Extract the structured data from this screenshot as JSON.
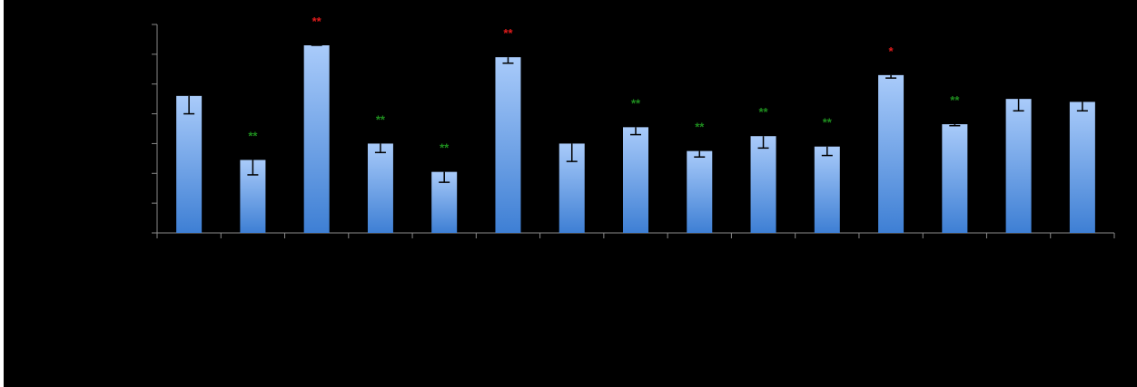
{
  "chart_data": {
    "type": "bar",
    "title": "",
    "xlabel": "",
    "ylabel": "",
    "ylim": [
      0,
      7
    ],
    "y_ticks": [
      0,
      1,
      2,
      3,
      4,
      5,
      6,
      7
    ],
    "grid": false,
    "legend": "none",
    "categories": [
      "",
      "",
      "",
      "",
      "",
      "",
      "",
      "",
      "",
      "",
      "",
      "",
      "",
      "",
      ""
    ],
    "values": [
      4.6,
      2.45,
      6.3,
      3.0,
      2.05,
      5.9,
      3.0,
      3.55,
      2.75,
      3.25,
      2.9,
      5.3,
      3.65,
      4.5,
      4.4
    ],
    "errors": [
      0.6,
      0.5,
      0.0,
      0.3,
      0.35,
      0.2,
      0.6,
      0.25,
      0.2,
      0.4,
      0.3,
      0.1,
      0.05,
      0.4,
      0.3
    ],
    "significance": [
      "",
      "**",
      "**",
      "**",
      "**",
      "**",
      "",
      "**",
      "**",
      "**",
      "**",
      "*",
      "**",
      "",
      ""
    ],
    "significance_colors": [
      "",
      "#1e8c1e",
      "#e11b1b",
      "#1e8c1e",
      "#1e8c1e",
      "#e11b1b",
      "",
      "#1e8c1e",
      "#1e8c1e",
      "#1e8c1e",
      "#1e8c1e",
      "#e11b1b",
      "#1e8c1e",
      "",
      ""
    ],
    "bar_color_top": "#a9cbfa",
    "bar_color_bottom": "#3e7fd4",
    "axis_color": "#8a8a8a",
    "background": "#000000"
  }
}
